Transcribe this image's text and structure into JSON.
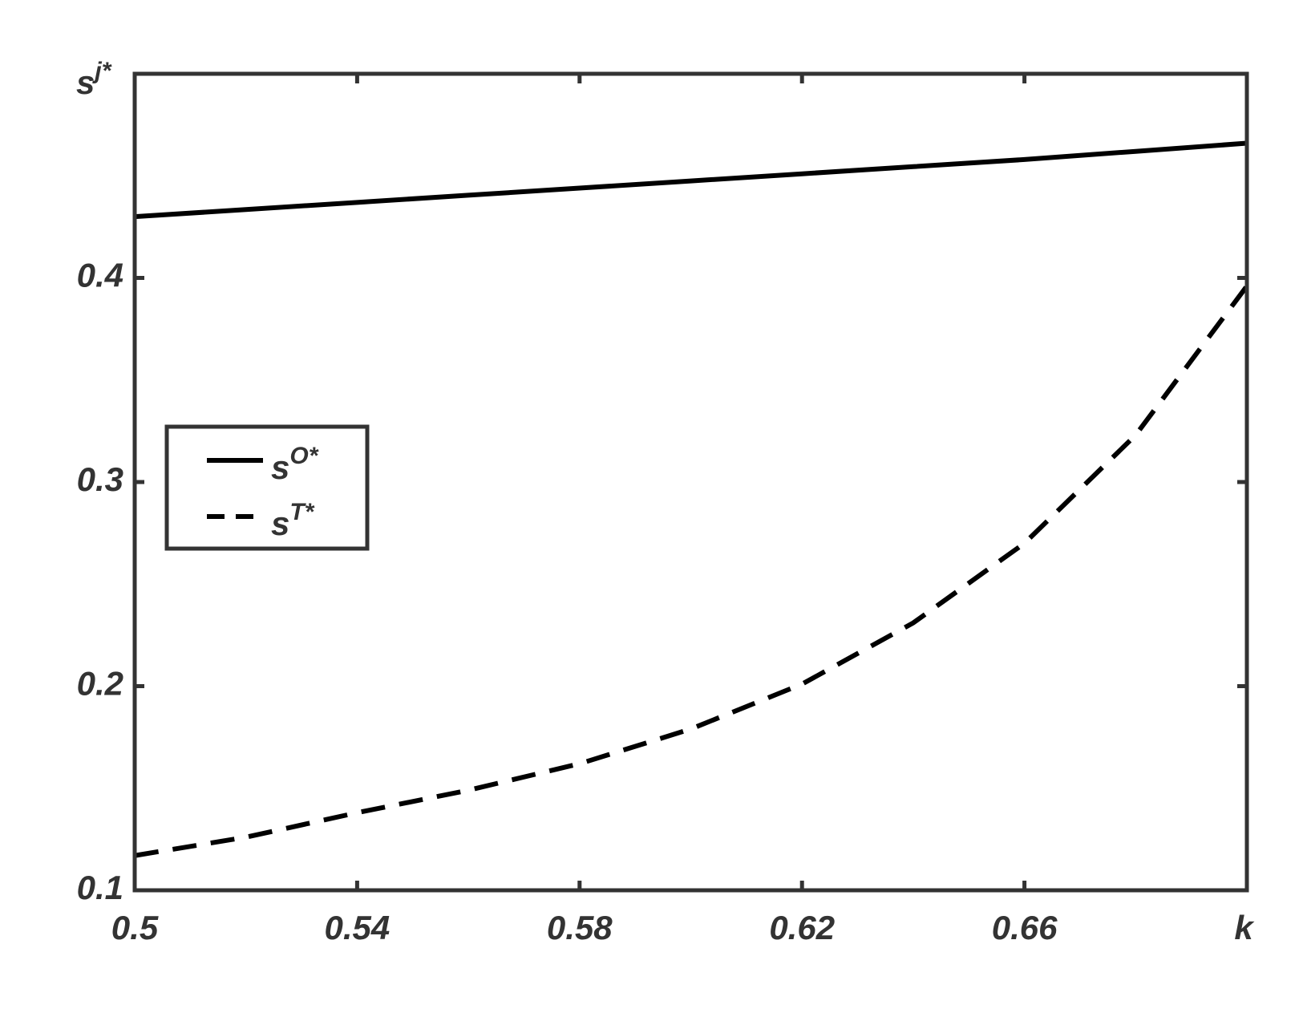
{
  "chart_data": {
    "type": "line",
    "x": [
      0.5,
      0.52,
      0.54,
      0.56,
      0.58,
      0.6,
      0.62,
      0.64,
      0.66,
      0.68,
      0.7
    ],
    "series": [
      {
        "name": "sO*",
        "color": "#000000",
        "dash": false,
        "values": [
          0.43,
          0.4335,
          0.437,
          0.4405,
          0.444,
          0.4475,
          0.451,
          0.4545,
          0.458,
          0.462,
          0.466
        ]
      },
      {
        "name": "sT*",
        "color": "#000000",
        "dash": true,
        "values": [
          0.117,
          0.126,
          0.138,
          0.149,
          0.162,
          0.179,
          0.201,
          0.231,
          0.27,
          0.323,
          0.396
        ]
      }
    ],
    "x_label": "k",
    "y_label": "sj*",
    "xlim": [
      0.5,
      0.7
    ],
    "xticks": [
      0.5,
      0.54,
      0.58,
      0.62,
      0.66
    ],
    "ylim": [
      0.1,
      0.5
    ],
    "yticks": [
      0.1,
      0.2,
      0.3,
      0.4
    ],
    "grid": false,
    "legend": "left"
  }
}
